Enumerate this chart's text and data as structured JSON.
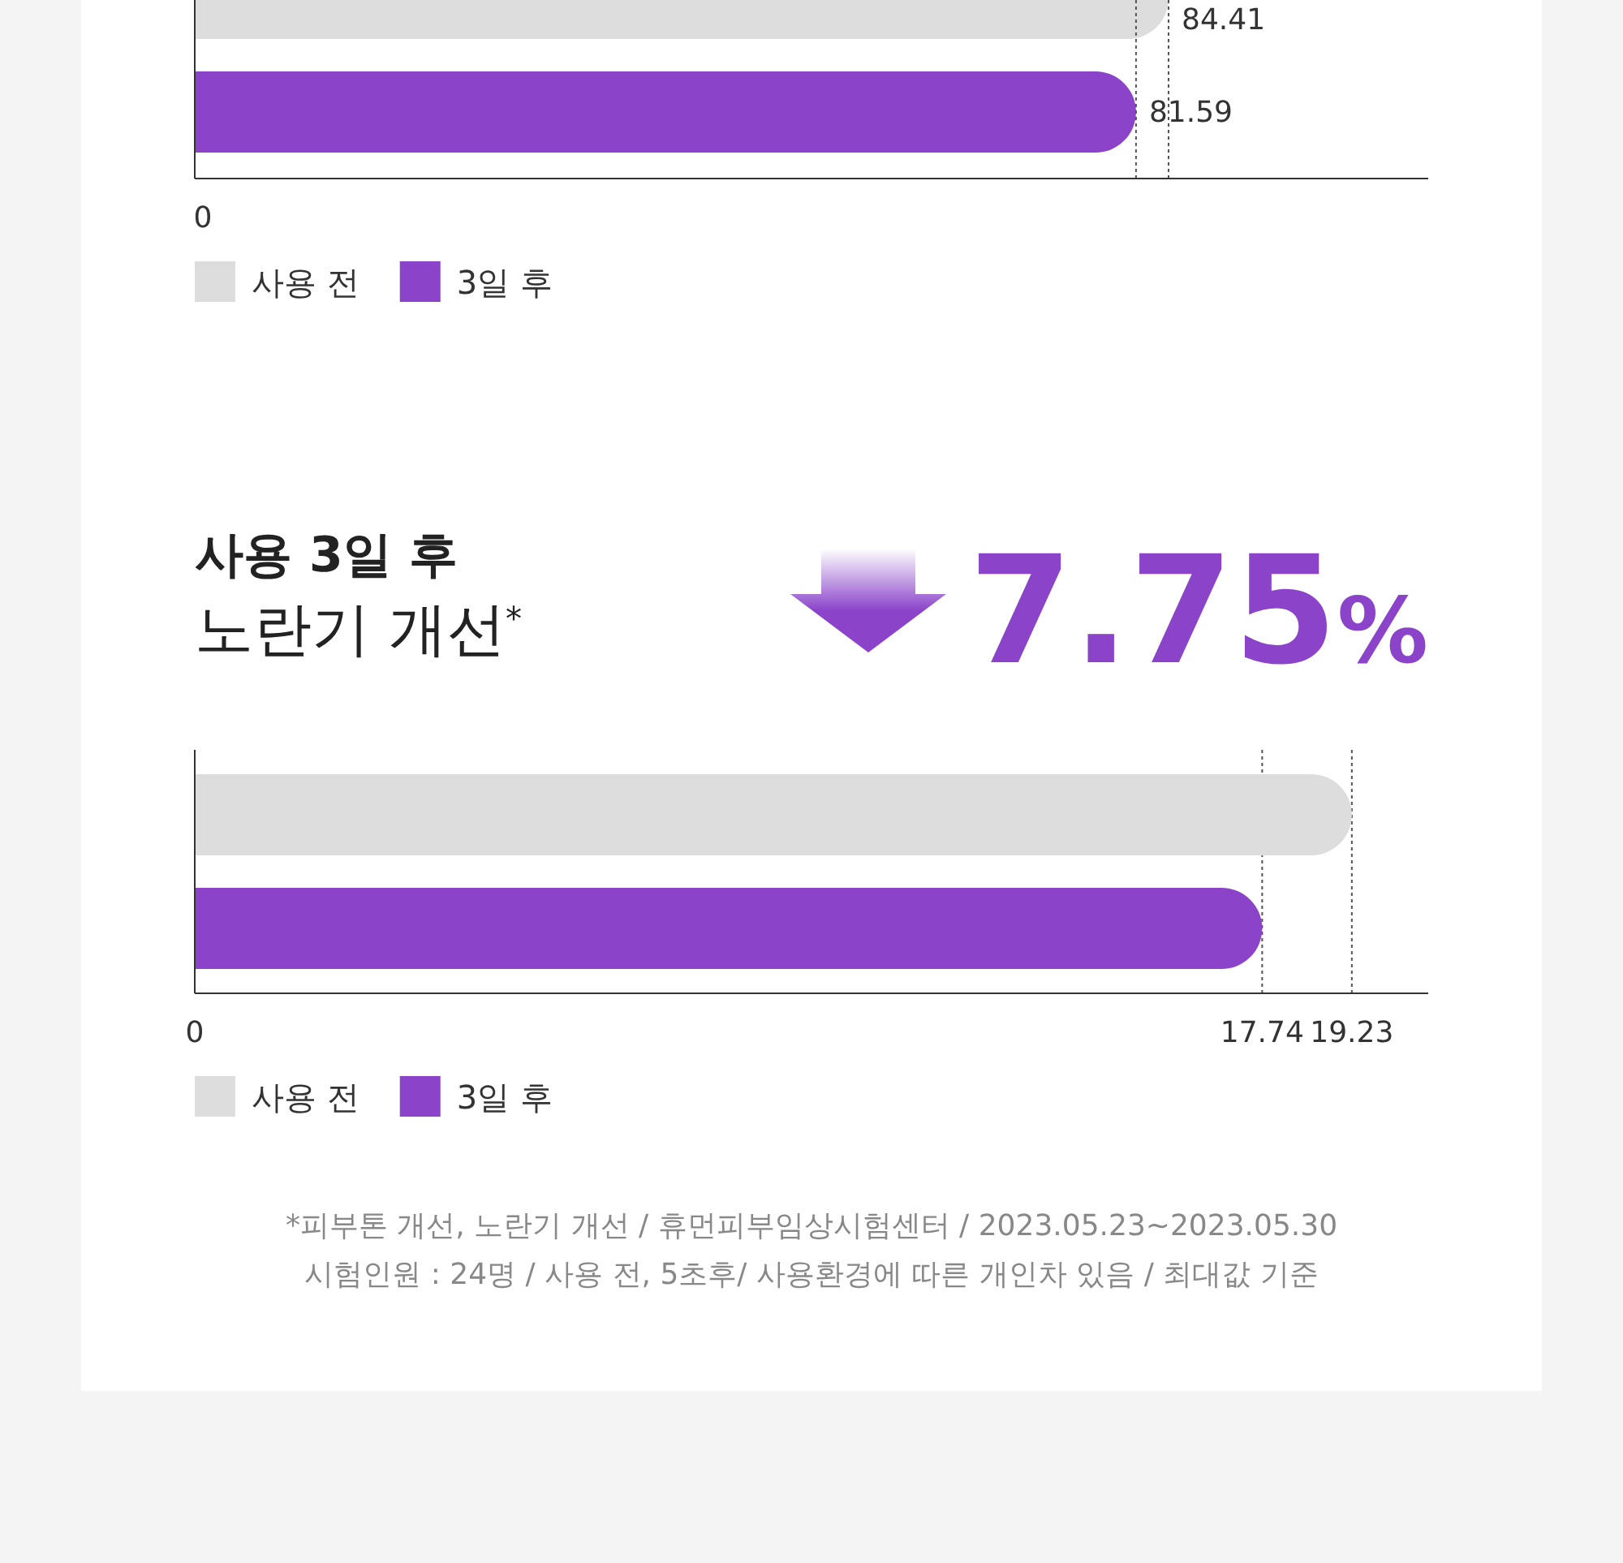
{
  "chart_data": [
    {
      "type": "bar",
      "orientation": "horizontal",
      "categories": [
        null
      ],
      "series": [
        {
          "name": "사용 전",
          "color": "#dddddd",
          "values": [
            84.41
          ]
        },
        {
          "name": "3일 후",
          "color": "#8a43c9",
          "values": [
            81.59
          ]
        }
      ],
      "data_labels": true,
      "legend": "bottom left",
      "ref_lines": [
        {
          "axis": "x",
          "value": 81.59,
          "line_style": "dotted",
          "color": "#555555"
        },
        {
          "axis": "x",
          "value": 84.41,
          "line_style": "dotted",
          "color": "#555555"
        }
      ],
      "annotations": [
        "0"
      ]
    },
    {
      "type": "bar",
      "orientation": "horizontal",
      "title": "사용 3일 후",
      "subtitle": "노란기 개선$^{*}$",
      "categories": [
        null
      ],
      "series": [
        {
          "name": "사용 전",
          "color": "#dddddd",
          "values": [
            19.23
          ]
        },
        {
          "name": "3일 후",
          "color": "#8a43c9",
          "values": [
            17.74
          ]
        }
      ],
      "xlim": [
        0,
        20.5
      ],
      "xticks": [
        0,
        17.74,
        19.23
      ],
      "grid": "x",
      "legend": "bottom left",
      "annotations": [
        "7.75%",
        "*피부톤 개선, 노란기 개선 / 휴먼피부임상시험센터 / 2023.05.23~2023.05.30",
        "시험인원 : 24명 / 사용 전, 5초후/ 사용환경에 따른 개인차 있음 / 최대값 기준"
      ]
    }
  ]
}
